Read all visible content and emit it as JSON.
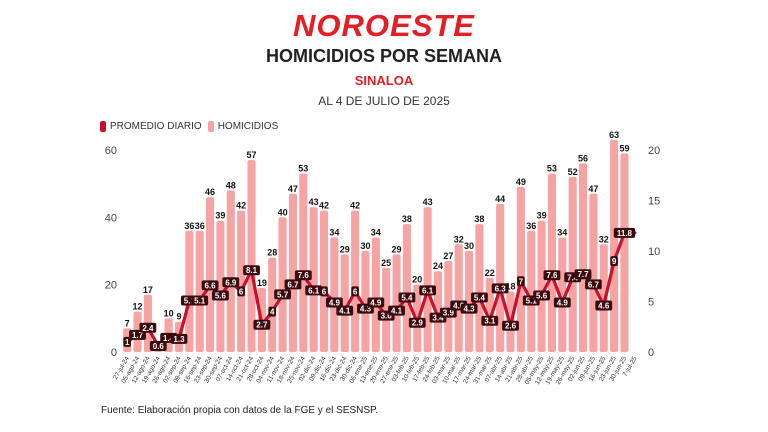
{
  "header": {
    "logo": "NOROESTE",
    "title": "HOMICIDIOS POR SEMANA",
    "subtitle": "SINALOA",
    "date": "AL 4 DE JULIO DE 2025"
  },
  "footer": {
    "source": "Fuente: Elaboración propia con datos de la FGE y el SESNSP."
  },
  "colors": {
    "accent": "#e31e24",
    "bar": "#f5a3a3",
    "line": "#c8102e"
  },
  "chart_data": {
    "type": "bar",
    "legend": [
      {
        "label": "PROMEDIO DIARIO",
        "color": "#c8102e"
      },
      {
        "label": "HOMICIDIOS",
        "color": "#f5a3a3"
      }
    ],
    "legend_position": "top-left",
    "grid": false,
    "ylim_left": [
      0,
      60
    ],
    "yticks_left": [
      "0",
      "20",
      "40",
      "60"
    ],
    "ylim_right": [
      0,
      20
    ],
    "yticks_right": [
      "0",
      "5",
      "10",
      "15",
      "20"
    ],
    "categories": [
      "27-jul-24",
      "05-ago-24",
      "12-ago-24",
      "19-ago-24",
      "26-ago-24",
      "02-sep-24",
      "09-sep-24",
      "16-sep-24",
      "23-sep-24",
      "30-sep-24",
      "07-oct-24",
      "14-oct-24",
      "21-oct-24",
      "28-oct-24",
      "04-nov-24",
      "11-nov-24",
      "18-nov-24",
      "25-nov-24",
      "02-dic-24",
      "09-dic-24",
      "16-dic-24",
      "23-dic-24",
      "30-dic-24",
      "06-ene-25",
      "13-ene-25",
      "20-ene-25",
      "27-ene-25",
      "03-feb-25",
      "10-feb-25",
      "17-feb-25",
      "24-feb-25",
      "03-mar-25",
      "10-mar-25",
      "17-mar-25",
      "24-mar-25",
      "31-mar-25",
      "07-abr-25",
      "14-abr-25",
      "21-abr-25",
      "28-abr-25",
      "05-may-25",
      "12-may-25",
      "19-may-25",
      "26-may-25",
      "02-jun-25",
      "09-jun-25",
      "16-jun-25",
      "23-jun-25",
      "30-jun-25",
      "7-jul-25"
    ],
    "series": [
      {
        "name": "HOMICIDIOS",
        "values": [
          7,
          12,
          17,
          2,
          10,
          9,
          36,
          36,
          46,
          39,
          48,
          42,
          57,
          19,
          28,
          40,
          47,
          53,
          43,
          42,
          34,
          29,
          42,
          30,
          34,
          25,
          29,
          38,
          20,
          43,
          24,
          27,
          32,
          30,
          38,
          22,
          44,
          18,
          49,
          36,
          39,
          53,
          34,
          52,
          56,
          47,
          32,
          63,
          59,
          null
        ],
        "labels": [
          "7",
          "12",
          "17",
          "",
          "10",
          "9",
          "36",
          "36",
          "46",
          "39",
          "48",
          "42",
          "57",
          "19",
          "28",
          "40",
          "47",
          "53",
          "43",
          "42",
          "34",
          "29",
          "42",
          "30",
          "34",
          "25",
          "29",
          "38",
          "20",
          "43",
          "24",
          "27",
          "32",
          "30",
          "38",
          "22",
          "44",
          "18",
          "49",
          "36",
          "39",
          "53",
          "34",
          "52",
          "56",
          "47",
          "32",
          "63",
          "59",
          ""
        ]
      },
      {
        "name": "PROMEDIO DIARIO",
        "values": [
          1.0,
          1.7,
          2.4,
          0.6,
          1.4,
          1.3,
          5.1,
          5.1,
          6.6,
          5.6,
          6.9,
          6,
          8.1,
          2.7,
          4,
          5.7,
          6.7,
          7.6,
          6.1,
          6,
          4.9,
          4.1,
          6,
          4.3,
          4.9,
          3.6,
          4.1,
          5.4,
          2.9,
          6.1,
          3.4,
          3.9,
          4.6,
          4.3,
          5.4,
          3.1,
          6.3,
          2.6,
          7,
          5.1,
          5.6,
          7.6,
          4.9,
          7.4,
          7.7,
          6.7,
          4.6,
          9,
          11.8,
          11.8
        ],
        "labels": [
          "1",
          "1.7",
          "2.4",
          "0.6",
          "1.4",
          "1.3",
          "5.1",
          "5.1",
          "6.6",
          "5.6",
          "6.9",
          "6",
          "8.1",
          "2.7",
          "4",
          "5.7",
          "6.7",
          "7.6",
          "6.1",
          "6",
          "4.9",
          "4.1",
          "6",
          "4.3",
          "4.9",
          "3.6",
          "4.1",
          "5.4",
          "2.9",
          "6.1",
          "3.4",
          "3.9",
          "4.6",
          "4.3",
          "5.4",
          "3.1",
          "6.3",
          "2.6",
          "7",
          "5.1",
          "5.6",
          "7.6",
          "4.9",
          "7.4",
          "7.7",
          "6.7",
          "4.6",
          "9",
          "11.8",
          ""
        ]
      }
    ]
  }
}
